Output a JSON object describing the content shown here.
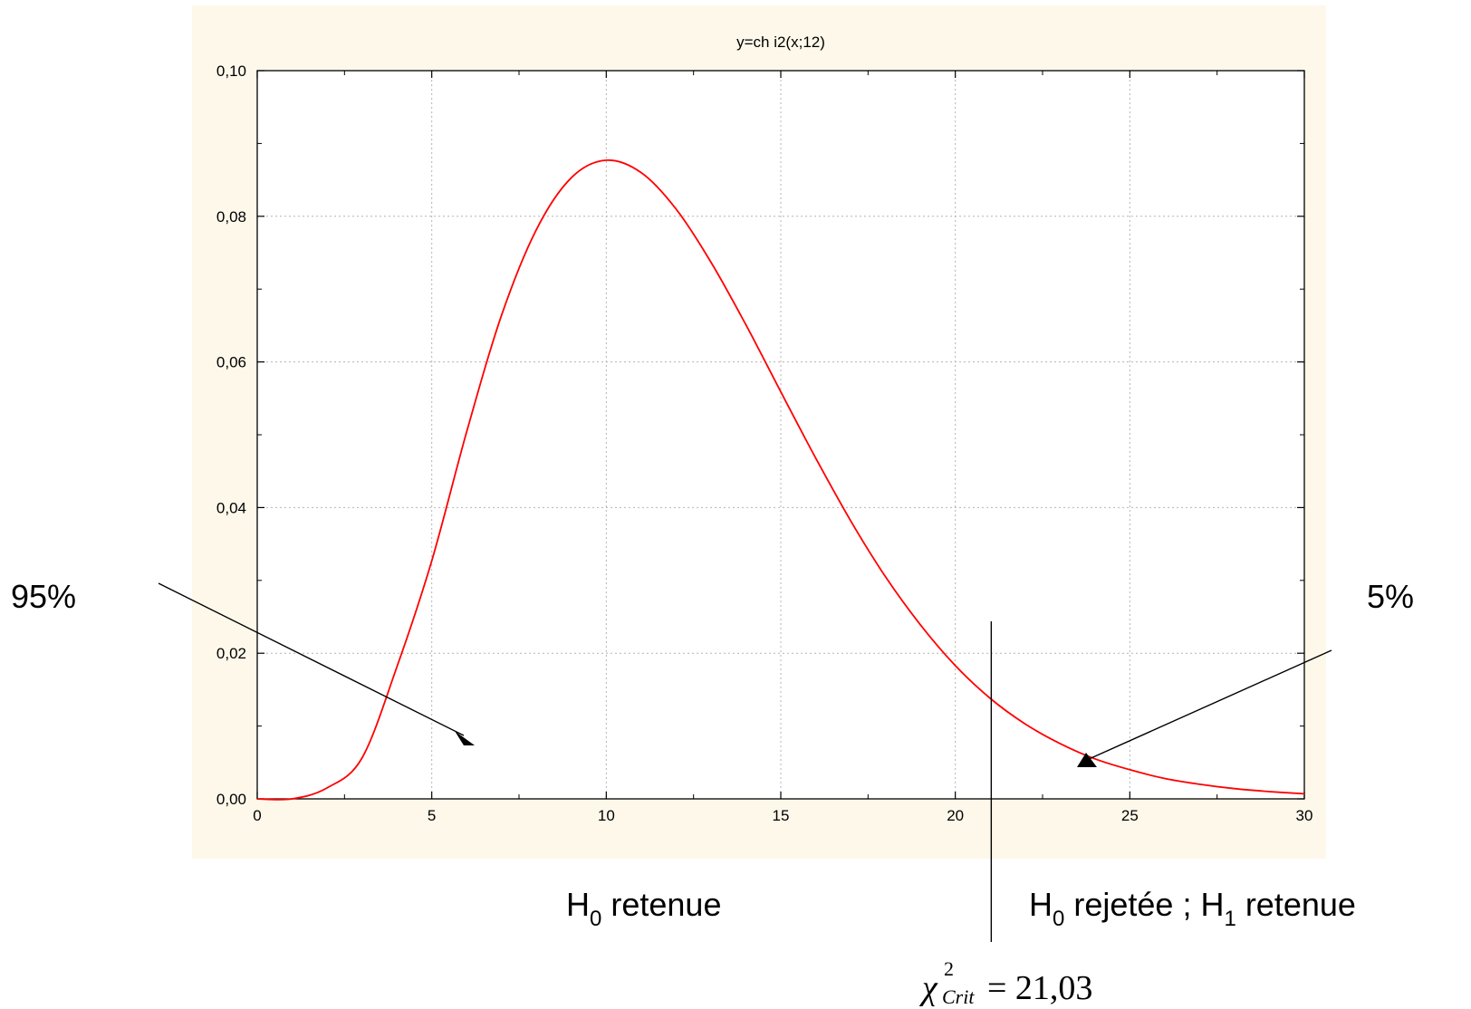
{
  "chart_data": {
    "type": "line",
    "title": "y=ch i2(x;12)",
    "xlabel": "",
    "ylabel": "",
    "xlim": [
      0,
      30
    ],
    "ylim": [
      0,
      0.1
    ],
    "grid": true,
    "x_ticks": [
      {
        "value": 0,
        "label": "0"
      },
      {
        "value": 5,
        "label": "5"
      },
      {
        "value": 10,
        "label": "10"
      },
      {
        "value": 15,
        "label": "15"
      },
      {
        "value": 20,
        "label": "20"
      },
      {
        "value": 25,
        "label": "25"
      },
      {
        "value": 30,
        "label": "30"
      }
    ],
    "y_ticks": [
      {
        "value": 0,
        "label": "0,00"
      },
      {
        "value": 0.02,
        "label": "0,02"
      },
      {
        "value": 0.04,
        "label": "0,04"
      },
      {
        "value": 0.06,
        "label": "0,06"
      },
      {
        "value": 0.08,
        "label": "0,08"
      },
      {
        "value": 0.1,
        "label": "0,10"
      }
    ],
    "series": [
      {
        "color": "#ff0000",
        "x": [
          0,
          1,
          2,
          3,
          4,
          5,
          6,
          7,
          8,
          9,
          10,
          11,
          12,
          13,
          14,
          15,
          16,
          17,
          18,
          19,
          20,
          21,
          22,
          23,
          24,
          25,
          26,
          27,
          28,
          29,
          30
        ],
        "y": [
          0,
          0,
          0.0015,
          0.0056,
          0.0181,
          0.0327,
          0.0504,
          0.0664,
          0.0782,
          0.0853,
          0.0877,
          0.086,
          0.081,
          0.0737,
          0.0651,
          0.0559,
          0.0468,
          0.0382,
          0.0305,
          0.0239,
          0.0183,
          0.0138,
          0.0103,
          0.0076,
          0.0055,
          0.004,
          0.0028,
          0.002,
          0.0014,
          0.001,
          0.0007
        ]
      }
    ],
    "critical_value": {
      "x": 21.03,
      "label_symbol": "χ",
      "label_sup": "2",
      "label_sub": "Crit",
      "label_value": "= 21,03"
    },
    "annotations": {
      "left_pct": "95%",
      "right_pct": "5%",
      "h0_retained": {
        "main": "H",
        "sub": "0",
        "rest": " retenue"
      },
      "h0_rejected": {
        "main": "H",
        "sub": "0",
        "middle": " rejetée ; H",
        "sub2": "1",
        "rest": " retenue"
      }
    },
    "colors": {
      "panel_background": "#fdf8ea",
      "plot_background": "#ffffff",
      "curve": "#ff0000",
      "grid": "#b4b4b4",
      "axes": "#000000"
    }
  }
}
